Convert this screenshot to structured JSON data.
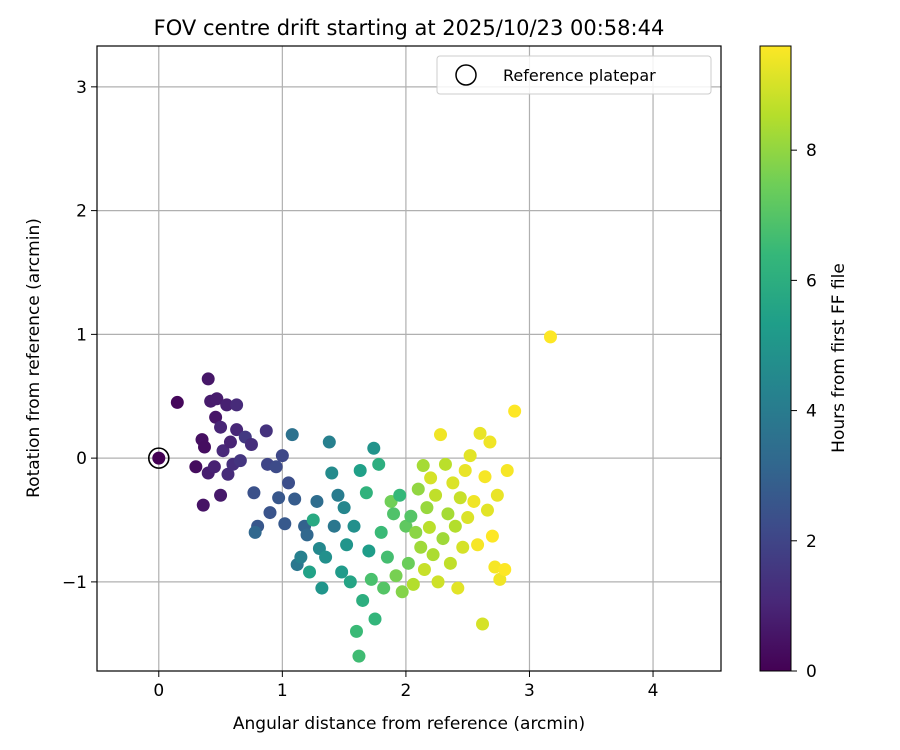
{
  "chart_data": {
    "type": "scatter",
    "title": "FOV centre drift starting at 2025/10/23 00:58:44",
    "xlabel": "Angular distance from reference (arcmin)",
    "ylabel": "Rotation from reference (arcmin)",
    "xlim": [
      -0.5,
      4.55
    ],
    "ylim": [
      -1.72,
      3.33
    ],
    "xticks": [
      0,
      1,
      2,
      3,
      4
    ],
    "yticks": [
      -1,
      0,
      1,
      2,
      3
    ],
    "xtick_labels": [
      "0",
      "1",
      "2",
      "3",
      "4"
    ],
    "ytick_labels": [
      "−1",
      "0",
      "1",
      "2",
      "3"
    ],
    "grid": true,
    "legend": {
      "position": "top-right",
      "entries": [
        "Reference platepar"
      ]
    },
    "reference_point": {
      "x": 0,
      "y": 0,
      "label": "Reference platepar"
    },
    "colorbar": {
      "label": "Hours from first FF file",
      "min": 0,
      "max": 9.6,
      "ticks": [
        0,
        2,
        4,
        6,
        8
      ],
      "tick_labels": [
        "0",
        "2",
        "4",
        "6",
        "8"
      ],
      "colormap": "viridis",
      "colormap_stops": [
        "#440154",
        "#482878",
        "#3e4989",
        "#31688e",
        "#26828e",
        "#1f9e89",
        "#35b779",
        "#6ece58",
        "#b5de2b",
        "#fde725"
      ]
    },
    "point_columns": [
      "x",
      "y",
      "hours"
    ],
    "points": [
      [
        0.0,
        0.0,
        0.0
      ],
      [
        0.15,
        0.45,
        0.2
      ],
      [
        0.3,
        -0.07,
        0.3
      ],
      [
        0.35,
        0.15,
        0.4
      ],
      [
        0.36,
        -0.38,
        0.5
      ],
      [
        0.37,
        0.09,
        0.35
      ],
      [
        0.4,
        0.64,
        0.6
      ],
      [
        0.42,
        0.46,
        0.7
      ],
      [
        0.4,
        -0.12,
        0.8
      ],
      [
        0.45,
        -0.07,
        0.9
      ],
      [
        0.46,
        0.33,
        0.55
      ],
      [
        0.47,
        0.48,
        0.75
      ],
      [
        0.5,
        0.25,
        1.0
      ],
      [
        0.5,
        -0.3,
        0.65
      ],
      [
        0.52,
        0.06,
        1.1
      ],
      [
        0.55,
        0.43,
        0.85
      ],
      [
        0.56,
        -0.13,
        1.2
      ],
      [
        0.58,
        0.13,
        0.95
      ],
      [
        0.6,
        -0.05,
        1.3
      ],
      [
        0.63,
        0.23,
        1.05
      ],
      [
        0.63,
        0.43,
        1.15
      ],
      [
        0.66,
        -0.02,
        1.5
      ],
      [
        0.7,
        0.17,
        1.6
      ],
      [
        0.75,
        0.11,
        1.25
      ],
      [
        0.77,
        -0.28,
        2.4
      ],
      [
        0.8,
        -0.55,
        2.6
      ],
      [
        0.78,
        -0.6,
        3.2
      ],
      [
        0.87,
        0.22,
        1.4
      ],
      [
        0.88,
        -0.05,
        2.0
      ],
      [
        0.9,
        -0.44,
        2.5
      ],
      [
        0.95,
        -0.07,
        2.2
      ],
      [
        0.97,
        -0.32,
        2.6
      ],
      [
        1.0,
        0.02,
        2.1
      ],
      [
        1.02,
        -0.53,
        2.7
      ],
      [
        1.05,
        -0.2,
        2.3
      ],
      [
        1.08,
        0.19,
        3.6
      ],
      [
        1.1,
        -0.33,
        2.8
      ],
      [
        1.12,
        -0.86,
        3.8
      ],
      [
        1.15,
        -0.8,
        4.2
      ],
      [
        1.18,
        -0.55,
        3.0
      ],
      [
        1.2,
        -0.62,
        3.2
      ],
      [
        1.22,
        -0.92,
        5.5
      ],
      [
        1.25,
        -0.5,
        5.8
      ],
      [
        1.28,
        -0.35,
        3.4
      ],
      [
        1.3,
        -0.73,
        4.5
      ],
      [
        1.32,
        -1.05,
        5.0
      ],
      [
        1.35,
        -0.8,
        4.8
      ],
      [
        1.38,
        0.13,
        4.2
      ],
      [
        1.4,
        -0.12,
        4.6
      ],
      [
        1.42,
        -0.55,
        3.8
      ],
      [
        1.45,
        -0.3,
        4.0
      ],
      [
        1.48,
        -0.92,
        5.2
      ],
      [
        1.5,
        -0.4,
        4.4
      ],
      [
        1.52,
        -0.7,
        5.0
      ],
      [
        1.55,
        -1.0,
        5.6
      ],
      [
        1.58,
        -0.55,
        4.8
      ],
      [
        1.6,
        -1.4,
        6.5
      ],
      [
        1.62,
        -1.6,
        6.6
      ],
      [
        1.63,
        -0.1,
        5.4
      ],
      [
        1.65,
        -1.15,
        6.0
      ],
      [
        1.68,
        -0.28,
        6.2
      ],
      [
        1.7,
        -0.75,
        5.3
      ],
      [
        1.72,
        -0.98,
        6.8
      ],
      [
        1.74,
        0.08,
        4.9
      ],
      [
        1.75,
        -1.3,
        6.3
      ],
      [
        1.78,
        -0.05,
        6.0
      ],
      [
        1.8,
        -0.6,
        6.5
      ],
      [
        1.82,
        -1.05,
        7.0
      ],
      [
        1.85,
        -0.8,
        6.7
      ],
      [
        1.88,
        -0.35,
        7.5
      ],
      [
        1.9,
        -0.45,
        6.9
      ],
      [
        1.92,
        -0.95,
        7.6
      ],
      [
        1.95,
        -0.3,
        6.4
      ],
      [
        1.97,
        -1.08,
        7.8
      ],
      [
        2.0,
        -0.55,
        7.2
      ],
      [
        2.02,
        -0.85,
        7.4
      ],
      [
        2.04,
        -0.47,
        7.0
      ],
      [
        2.06,
        -1.02,
        8.5
      ],
      [
        2.08,
        -0.6,
        7.9
      ],
      [
        2.1,
        -0.25,
        8.0
      ],
      [
        2.12,
        -0.72,
        8.2
      ],
      [
        2.14,
        -0.06,
        8.3
      ],
      [
        2.15,
        -0.9,
        8.8
      ],
      [
        2.17,
        -0.4,
        8.1
      ],
      [
        2.19,
        -0.56,
        8.6
      ],
      [
        2.2,
        -0.16,
        9.0
      ],
      [
        2.22,
        -0.78,
        8.4
      ],
      [
        2.24,
        -0.3,
        8.7
      ],
      [
        2.26,
        -1.0,
        8.9
      ],
      [
        2.28,
        0.19,
        9.4
      ],
      [
        2.3,
        -0.65,
        8.2
      ],
      [
        2.32,
        -0.05,
        8.6
      ],
      [
        2.34,
        -0.45,
        8.3
      ],
      [
        2.36,
        -0.85,
        8.7
      ],
      [
        2.38,
        -0.2,
        9.1
      ],
      [
        2.4,
        -0.55,
        8.5
      ],
      [
        2.42,
        -1.05,
        9.2
      ],
      [
        2.44,
        -0.32,
        8.8
      ],
      [
        2.46,
        -0.72,
        9.0
      ],
      [
        2.48,
        -0.1,
        9.3
      ],
      [
        2.5,
        -0.48,
        9.1
      ],
      [
        2.52,
        0.02,
        9.2
      ],
      [
        2.55,
        -0.35,
        9.4
      ],
      [
        2.58,
        -0.7,
        9.5
      ],
      [
        2.6,
        0.2,
        9.3
      ],
      [
        2.62,
        -1.34,
        9.0
      ],
      [
        2.64,
        -0.15,
        9.5
      ],
      [
        2.66,
        -0.42,
        9.2
      ],
      [
        2.68,
        0.13,
        9.4
      ],
      [
        2.7,
        -0.63,
        9.6
      ],
      [
        2.72,
        -0.88,
        9.5
      ],
      [
        2.74,
        -0.3,
        9.3
      ],
      [
        2.76,
        -0.98,
        9.4
      ],
      [
        2.8,
        -0.9,
        9.6
      ],
      [
        2.82,
        -0.1,
        9.5
      ],
      [
        2.88,
        0.38,
        9.6
      ],
      [
        3.17,
        0.98,
        9.6
      ]
    ]
  }
}
